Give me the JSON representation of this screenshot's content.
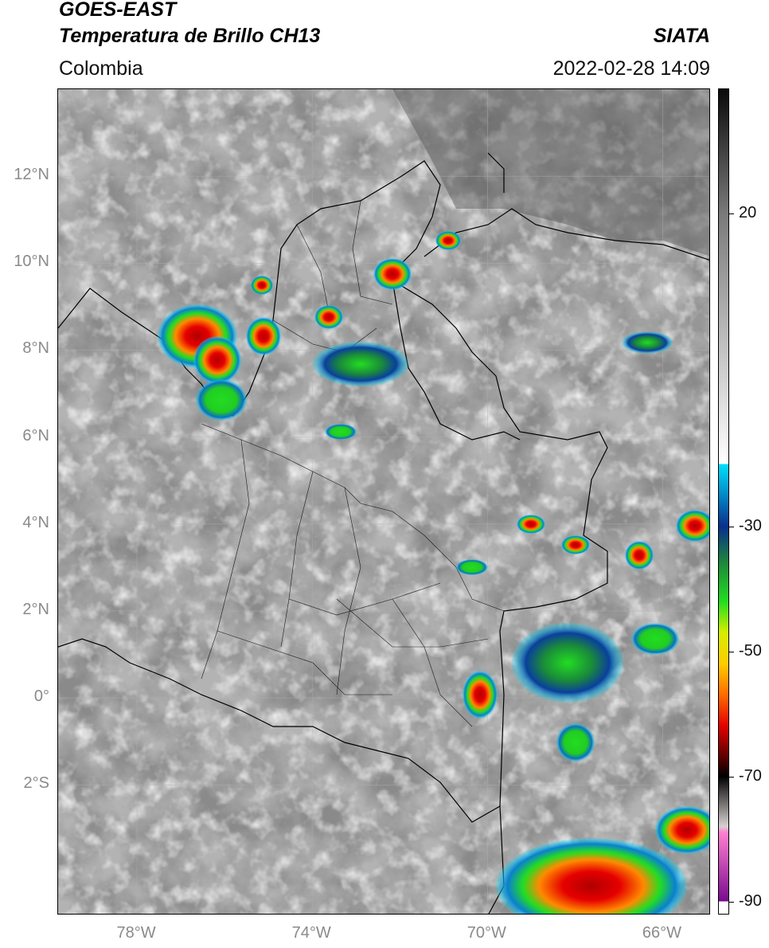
{
  "header": {
    "satellite": "GOES-EAST",
    "product": "Temperatura de Brillo CH13",
    "region": "Colombia",
    "agency": "SIATA",
    "datetime": "2022-02-28 14:09"
  },
  "map": {
    "lat_labels": [
      {
        "text": "12°N",
        "lat": 12
      },
      {
        "text": "10°N",
        "lat": 10
      },
      {
        "text": "8°N",
        "lat": 8
      },
      {
        "text": "6°N",
        "lat": 6
      },
      {
        "text": "4°N",
        "lat": 4
      },
      {
        "text": "2°N",
        "lat": 2
      },
      {
        "text": "0°",
        "lat": 0
      },
      {
        "text": "2°S",
        "lat": -2
      }
    ],
    "lon_labels": [
      {
        "text": "78°W",
        "lon": -78
      },
      {
        "text": "74°W",
        "lon": -74
      },
      {
        "text": "70°W",
        "lon": -70
      },
      {
        "text": "66°W",
        "lon": -66
      }
    ],
    "lon_range": [
      -79.8,
      -64.9
    ],
    "lat_range": [
      -5.0,
      14.0
    ]
  },
  "colorbar": {
    "labels": [
      {
        "text": "20",
        "value": 20
      },
      {
        "text": "-30",
        "value": -30
      },
      {
        "text": "-50",
        "value": -50
      },
      {
        "text": "-70",
        "value": -70
      },
      {
        "text": "-90",
        "value": -90
      }
    ],
    "range": [
      -92,
      40
    ],
    "stops": [
      {
        "value": 40,
        "color": "#0a0a0a"
      },
      {
        "value": 20,
        "color": "#7a7a7a"
      },
      {
        "value": -20,
        "color": "#ffffff"
      },
      {
        "value": -20.01,
        "color": "#00e0ff"
      },
      {
        "value": -30,
        "color": "#0a2f8c"
      },
      {
        "value": -36,
        "color": "#1f8a3a"
      },
      {
        "value": -42,
        "color": "#22dd22"
      },
      {
        "value": -47,
        "color": "#d6ee00"
      },
      {
        "value": -52,
        "color": "#ffcc00"
      },
      {
        "value": -57,
        "color": "#ff6a00"
      },
      {
        "value": -62,
        "color": "#e00000"
      },
      {
        "value": -67,
        "color": "#5a0000"
      },
      {
        "value": -70,
        "color": "#000000"
      },
      {
        "value": -78,
        "color": "#d8d0d0"
      },
      {
        "value": -79,
        "color": "#ff80d0"
      },
      {
        "value": -90,
        "color": "#7a0a90"
      },
      {
        "value": -90.01,
        "color": "#ffffff"
      },
      {
        "value": -92,
        "color": "#ffffff"
      }
    ]
  }
}
